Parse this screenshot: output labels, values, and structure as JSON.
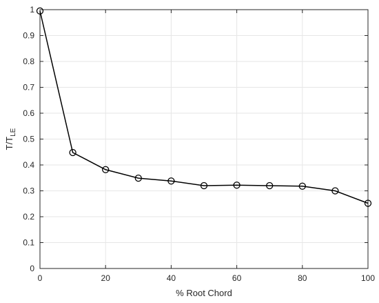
{
  "chart_data": {
    "type": "line",
    "title": "",
    "xlabel": "% Root Chord",
    "ylabel_main": "T/T",
    "ylabel_sub": "LE",
    "xlim": [
      0,
      100
    ],
    "ylim": [
      0,
      1
    ],
    "xticks": [
      0,
      20,
      40,
      60,
      80,
      100
    ],
    "yticks": [
      0,
      0.1,
      0.2,
      0.3,
      0.4,
      0.5,
      0.6,
      0.7,
      0.8,
      0.9,
      1
    ],
    "ytick_labels": [
      "0",
      "0.1",
      "0.2",
      "0.3",
      "0.4",
      "0.5",
      "0.6",
      "0.7",
      "0.8",
      "0.9",
      "1"
    ],
    "grid": true,
    "series": [
      {
        "marker": "circle",
        "color": "#000000",
        "x": [
          0,
          10,
          20,
          30,
          40,
          50,
          60,
          70,
          80,
          90,
          100
        ],
        "y": [
          0.995,
          0.448,
          0.382,
          0.349,
          0.338,
          0.32,
          0.322,
          0.32,
          0.318,
          0.3,
          0.252
        ]
      }
    ]
  }
}
